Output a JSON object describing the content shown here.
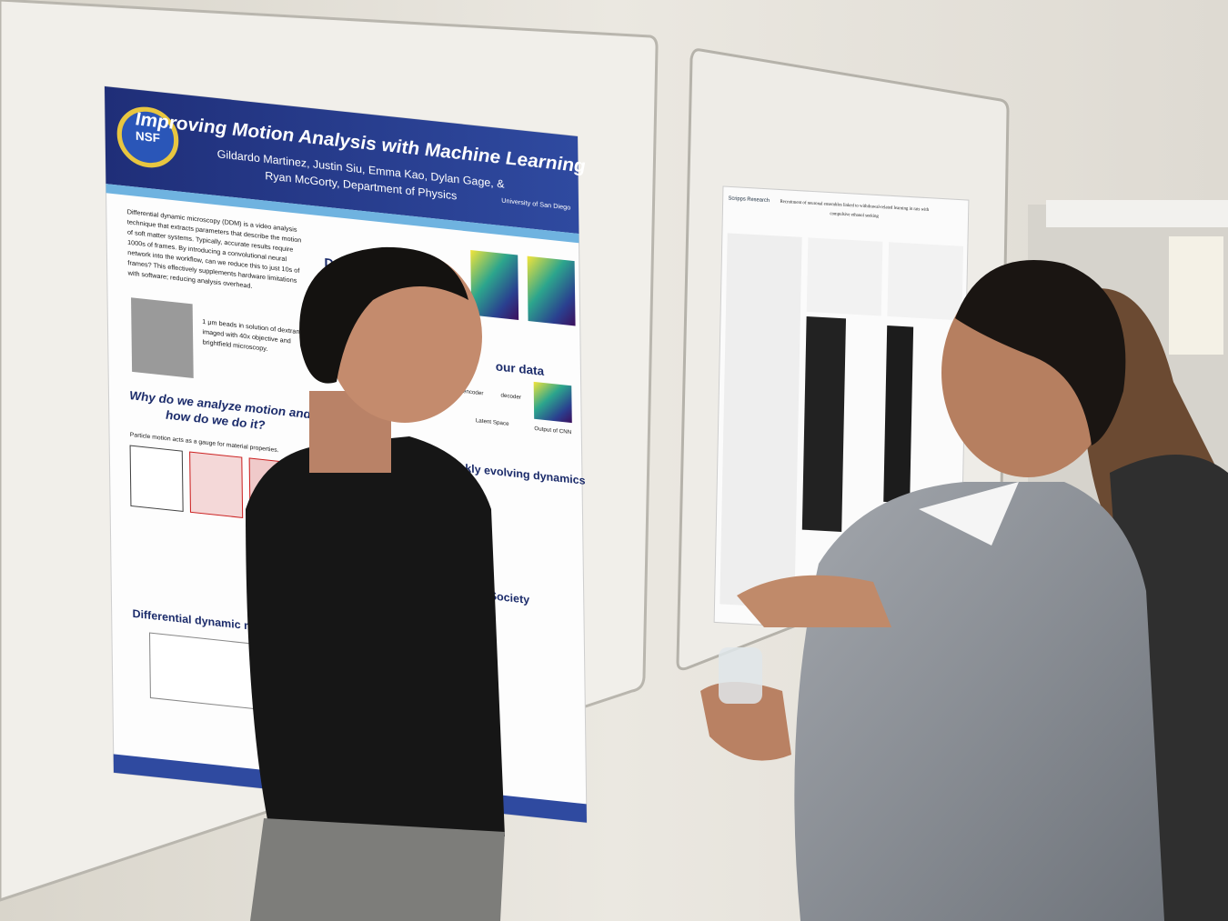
{
  "poster_left": {
    "logo": "NSF",
    "title": "Improving Motion Analysis with Machine Learning",
    "authors_line1": "Gildardo Martinez, Justin Siu, Emma Kao, Dylan Gage, &",
    "authors_line2": "Ryan McGorty, Department of Physics",
    "university": "University of San Diego",
    "intro_lines": [
      "Differential dynamic microscopy (DDM) is a video analysis",
      "technique that extracts parameters that describe the motion",
      "of soft matter systems. Typically, accurate results require",
      "1000s of frames. By introducing a convolutional neural",
      "network into the workflow, can we reduce this to just 10s of",
      "frames? This effectively supplements hardware limitations",
      "with software; reducing analysis overhead."
    ],
    "caption_lines": [
      "1 μm beads in solution of dextran",
      "imaged with 40x objective and",
      "brightfield microscopy."
    ],
    "heading_why_line1": "Why do we analyze motion and",
    "heading_why_line2": "how do we do it?",
    "particle_motion": "Particle motion acts as a gauge for material properties.",
    "heading_ddm": "Differential dynamic m",
    "heading_dynamics": "Dynamics",
    "heading_data": "our data",
    "encoder": "encoder",
    "decoder": "decoder",
    "latent": "Latent Space",
    "output": "Output of CNN",
    "heading_captures": "aptures quickly evolving dynamics",
    "heading_society": "ng & Society"
  },
  "poster_right": {
    "institution": "Scripps Research",
    "title_line1": "Recruitment of neuronal ensembles linked to withdrawal-related learning in rats with",
    "title_line2": "compulsive ethanol seeking"
  }
}
